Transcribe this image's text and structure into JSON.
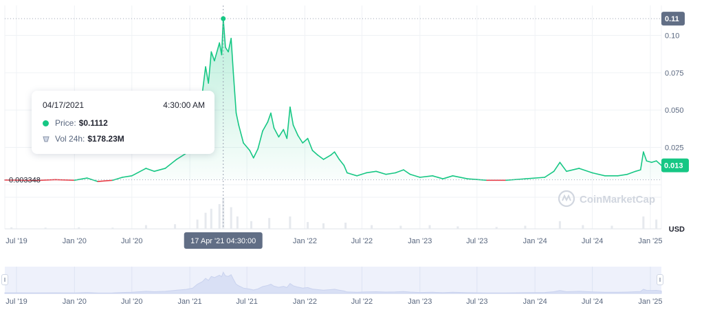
{
  "chart_data": {
    "type": "line",
    "unit_label": "USD",
    "y_ticks": [
      0.025,
      0.05,
      0.075,
      0.1
    ],
    "y_tick_labels": [
      "0.025",
      "0.050",
      "0.075",
      "0.10"
    ],
    "ylim": [
      -0.0295,
      0.12
    ],
    "x_ticks": [
      "2019-07-01",
      "2020-01-01",
      "2020-07-01",
      "2021-01-01",
      "2021-07-01",
      "2022-01-01",
      "2022-07-01",
      "2023-01-01",
      "2023-07-01",
      "2024-01-01",
      "2024-07-01",
      "2025-01-01"
    ],
    "x_tick_labels": [
      "Jul '19",
      "Jan '20",
      "Jul '20",
      "Jan '21",
      "Jul '21",
      "Jan '22",
      "Jul '22",
      "Jan '23",
      "Jul '23",
      "Jan '24",
      "Jul '24",
      "Jan '25"
    ],
    "xlim": [
      "2019-05-25",
      "2025-02-05"
    ],
    "grid": true,
    "reference_price": 0.003348,
    "reference_label": "0.003348",
    "max_price_label": "0.11",
    "max_price": 0.1112,
    "current_price_label": "0.013",
    "current_price": 0.013,
    "series": [
      {
        "color_up": "#16c784",
        "color_down": "#ea3943",
        "points": [
          [
            "2019-05-25",
            0.0032
          ],
          [
            "2019-07-01",
            0.0031
          ],
          [
            "2019-09-01",
            0.0029
          ],
          [
            "2019-11-01",
            0.0034
          ],
          [
            "2020-01-01",
            0.003
          ],
          [
            "2020-02-10",
            0.0045
          ],
          [
            "2020-03-15",
            0.0022
          ],
          [
            "2020-05-01",
            0.003
          ],
          [
            "2020-06-01",
            0.005
          ],
          [
            "2020-07-01",
            0.006
          ],
          [
            "2020-08-15",
            0.011
          ],
          [
            "2020-09-10",
            0.009
          ],
          [
            "2020-10-15",
            0.011
          ],
          [
            "2020-11-20",
            0.017
          ],
          [
            "2020-12-20",
            0.021
          ],
          [
            "2021-01-10",
            0.028
          ],
          [
            "2021-01-25",
            0.048
          ],
          [
            "2021-02-10",
            0.062
          ],
          [
            "2021-02-20",
            0.079
          ],
          [
            "2021-03-01",
            0.068
          ],
          [
            "2021-03-10",
            0.089
          ],
          [
            "2021-03-20",
            0.083
          ],
          [
            "2021-04-05",
            0.095
          ],
          [
            "2021-04-12",
            0.087
          ],
          [
            "2021-04-17",
            0.1112
          ],
          [
            "2021-04-24",
            0.092
          ],
          [
            "2021-05-03",
            0.089
          ],
          [
            "2021-05-12",
            0.098
          ],
          [
            "2021-05-19",
            0.075
          ],
          [
            "2021-05-28",
            0.048
          ],
          [
            "2021-06-05",
            0.04
          ],
          [
            "2021-06-20",
            0.028
          ],
          [
            "2021-07-10",
            0.023
          ],
          [
            "2021-07-22",
            0.018
          ],
          [
            "2021-08-05",
            0.024
          ],
          [
            "2021-08-20",
            0.036
          ],
          [
            "2021-09-05",
            0.042
          ],
          [
            "2021-09-15",
            0.048
          ],
          [
            "2021-09-25",
            0.038
          ],
          [
            "2021-10-10",
            0.032
          ],
          [
            "2021-10-25",
            0.037
          ],
          [
            "2021-11-05",
            0.031
          ],
          [
            "2021-11-15",
            0.052
          ],
          [
            "2021-11-25",
            0.04
          ],
          [
            "2021-12-10",
            0.033
          ],
          [
            "2021-12-25",
            0.028
          ],
          [
            "2022-01-10",
            0.031
          ],
          [
            "2022-01-25",
            0.023
          ],
          [
            "2022-02-10",
            0.02
          ],
          [
            "2022-03-01",
            0.017
          ],
          [
            "2022-03-25",
            0.02
          ],
          [
            "2022-04-05",
            0.022
          ],
          [
            "2022-04-20",
            0.017
          ],
          [
            "2022-05-05",
            0.013
          ],
          [
            "2022-05-15",
            0.008
          ],
          [
            "2022-06-15",
            0.006
          ],
          [
            "2022-07-15",
            0.008
          ],
          [
            "2022-08-15",
            0.009
          ],
          [
            "2022-09-15",
            0.007
          ],
          [
            "2022-10-15",
            0.008
          ],
          [
            "2022-11-10",
            0.01
          ],
          [
            "2022-12-01",
            0.007
          ],
          [
            "2023-01-01",
            0.005
          ],
          [
            "2023-02-10",
            0.006
          ],
          [
            "2023-03-15",
            0.004
          ],
          [
            "2023-04-15",
            0.006
          ],
          [
            "2023-06-01",
            0.004
          ],
          [
            "2023-08-01",
            0.003
          ],
          [
            "2023-10-01",
            0.003
          ],
          [
            "2023-12-01",
            0.004
          ],
          [
            "2024-02-01",
            0.005
          ],
          [
            "2024-03-01",
            0.009
          ],
          [
            "2024-03-20",
            0.015
          ],
          [
            "2024-04-10",
            0.009
          ],
          [
            "2024-05-20",
            0.011
          ],
          [
            "2024-07-01",
            0.008
          ],
          [
            "2024-08-10",
            0.006
          ],
          [
            "2024-09-20",
            0.006
          ],
          [
            "2024-10-20",
            0.007
          ],
          [
            "2024-11-15",
            0.009
          ],
          [
            "2024-12-01",
            0.01
          ],
          [
            "2024-12-10",
            0.022
          ],
          [
            "2024-12-20",
            0.016
          ],
          [
            "2025-01-05",
            0.015
          ],
          [
            "2025-01-20",
            0.016
          ],
          [
            "2025-02-05",
            0.013
          ]
        ]
      }
    ],
    "volume": [
      [
        "2019-06-15",
        0.05
      ],
      [
        "2019-10-01",
        0.04
      ],
      [
        "2020-01-15",
        0.05
      ],
      [
        "2020-05-01",
        0.04
      ],
      [
        "2020-08-15",
        0.12
      ],
      [
        "2020-11-15",
        0.15
      ],
      [
        "2021-01-25",
        0.3
      ],
      [
        "2021-02-20",
        0.52
      ],
      [
        "2021-03-10",
        0.65
      ],
      [
        "2021-04-05",
        0.8
      ],
      [
        "2021-04-17",
        1.0
      ],
      [
        "2021-05-12",
        0.7
      ],
      [
        "2021-06-01",
        0.4
      ],
      [
        "2021-07-15",
        0.25
      ],
      [
        "2021-09-10",
        0.35
      ],
      [
        "2021-11-15",
        0.4
      ],
      [
        "2022-01-10",
        0.22
      ],
      [
        "2022-03-01",
        0.18
      ],
      [
        "2022-05-10",
        0.2
      ],
      [
        "2022-08-01",
        0.12
      ],
      [
        "2022-11-01",
        0.1
      ],
      [
        "2023-02-01",
        0.12
      ],
      [
        "2023-05-01",
        0.08
      ],
      [
        "2023-09-01",
        0.06
      ],
      [
        "2023-12-01",
        0.1
      ],
      [
        "2024-03-20",
        0.25
      ],
      [
        "2024-06-01",
        0.12
      ],
      [
        "2024-09-01",
        0.1
      ],
      [
        "2024-12-10",
        0.4
      ],
      [
        "2025-01-20",
        0.3
      ]
    ]
  },
  "tooltip": {
    "date": "04/17/2021",
    "time": "4:30:00 AM",
    "price_label": "Price:",
    "price_value": "$0.1112",
    "volume_label": "Vol 24h:",
    "volume_value": "$178.23M"
  },
  "crosshair_label": "17 Apr '21 04:30:00",
  "watermark": "CoinMarketCap",
  "colors": {
    "up": "#16c784",
    "down": "#ea3943",
    "grid": "#eff2f5",
    "axis_text": "#58667e",
    "navigator_fill": "#e3e9f8",
    "badge_dark": "#616e85"
  },
  "icons": {
    "watermark_logo": "coinmarketcap-logo-icon",
    "volume_icon": "volume-bar-icon",
    "handle_icon": "grip-icon"
  }
}
